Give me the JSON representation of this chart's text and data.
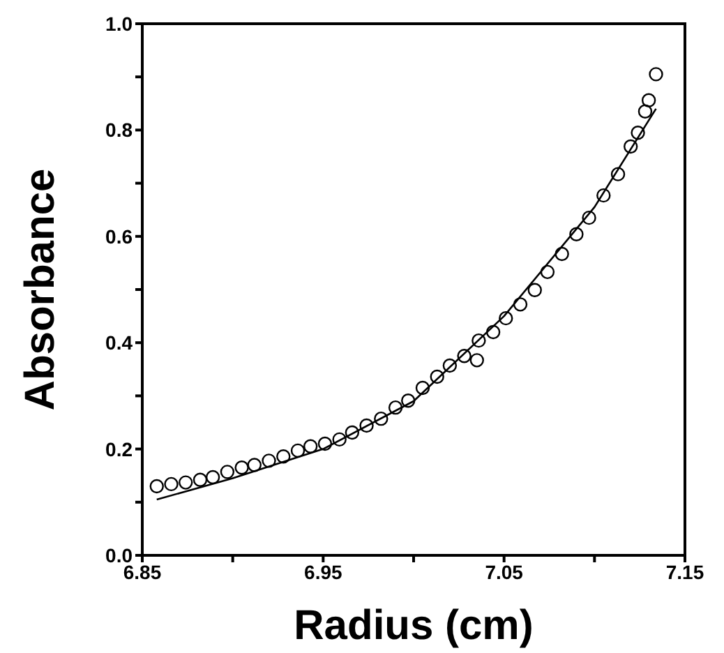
{
  "chart_data": {
    "type": "scatter",
    "xlabel": "Radius (cm)",
    "ylabel": "Absorbance",
    "xlim": [
      6.85,
      7.15
    ],
    "xticks": [
      6.85,
      {
        "value": 6.9,
        "label": null
      },
      6.95,
      {
        "value": 7.0,
        "label": null
      },
      7.05,
      {
        "value": 7.1,
        "label": null
      },
      7.15
    ],
    "ylim": [
      0,
      1
    ],
    "yticks": [
      {
        "value": 0,
        "label": "0.0"
      },
      {
        "value": 0.1,
        "label": null
      },
      0.2,
      {
        "value": 0.3,
        "label": null
      },
      0.4,
      {
        "value": 0.5,
        "label": null
      },
      0.6,
      {
        "value": 0.7,
        "label": null
      },
      0.8,
      {
        "value": 0.9,
        "label": null
      },
      {
        "value": 1,
        "label": "1.0"
      }
    ],
    "grid": false,
    "legend": false,
    "series": [
      {
        "color": "#000000",
        "marker": "circle",
        "x": [
          6.858,
          6.866,
          6.874,
          6.882,
          6.889,
          6.897,
          6.905,
          6.912,
          6.92,
          6.928,
          6.936,
          6.943,
          6.951,
          6.959,
          6.966,
          6.974,
          6.982,
          6.99,
          6.997,
          7.005,
          7.013,
          7.02,
          7.028,
          7.035,
          7.036,
          7.044,
          7.051,
          7.059,
          7.067,
          7.074,
          7.082,
          7.09,
          7.097,
          7.105,
          7.113,
          7.12,
          7.124,
          7.128,
          7.13,
          7.134
        ],
        "values": [
          0.13,
          0.134,
          0.137,
          0.142,
          0.147,
          0.157,
          0.165,
          0.17,
          0.178,
          0.186,
          0.197,
          0.205,
          0.21,
          0.218,
          0.231,
          0.244,
          0.257,
          0.278,
          0.291,
          0.315,
          0.336,
          0.357,
          0.375,
          0.367,
          0.404,
          0.42,
          0.446,
          0.472,
          0.499,
          0.533,
          0.567,
          0.604,
          0.635,
          0.677,
          0.717,
          0.769,
          0.795,
          0.835,
          0.856,
          0.905
        ]
      },
      {
        "type": "line",
        "color": "#000000",
        "marker": "none",
        "line_style": "solid",
        "x": [
          6.858,
          6.9,
          6.95,
          7.0,
          7.05,
          7.1,
          7.134
        ],
        "values": [
          0.105,
          0.145,
          0.2,
          0.29,
          0.45,
          0.655,
          0.84
        ]
      }
    ]
  }
}
